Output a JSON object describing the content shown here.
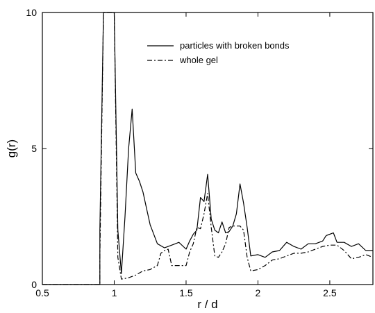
{
  "chart_data": {
    "type": "line",
    "xlabel": "r / d",
    "ylabel": "g(r)",
    "xlim": [
      0.5,
      2.8
    ],
    "ylim": [
      0,
      10
    ],
    "x_ticks": [
      0.5,
      1,
      1.5,
      2,
      2.5
    ],
    "x_tick_labels": [
      "0.5",
      "1",
      "1.5",
      "2",
      "2.5"
    ],
    "y_ticks": [
      0,
      5,
      10
    ],
    "y_tick_labels": [
      "0",
      "5",
      "10"
    ],
    "legend": {
      "position": "top-right"
    },
    "grid": false,
    "series": [
      {
        "name": "particles with broken bonds",
        "style": "solid",
        "color": "#000000",
        "x": [
          0.5,
          0.9,
          0.9,
          0.925,
          0.95,
          0.975,
          1.0,
          1.025,
          1.05,
          1.075,
          1.1,
          1.125,
          1.15,
          1.175,
          1.2,
          1.225,
          1.25,
          1.3,
          1.35,
          1.4,
          1.45,
          1.5,
          1.525,
          1.55,
          1.575,
          1.6,
          1.625,
          1.65,
          1.675,
          1.7,
          1.725,
          1.75,
          1.775,
          1.8,
          1.825,
          1.85,
          1.875,
          1.9,
          1.925,
          1.95,
          2.0,
          2.05,
          2.1,
          2.15,
          2.2,
          2.25,
          2.3,
          2.35,
          2.4,
          2.45,
          2.475,
          2.5,
          2.525,
          2.55,
          2.6,
          2.65,
          2.7,
          2.75,
          2.8
        ],
        "values": [
          0,
          0,
          2.0,
          10,
          10,
          10,
          10,
          2.0,
          0.4,
          2.5,
          5.0,
          6.45,
          4.1,
          3.8,
          3.4,
          2.8,
          2.2,
          1.5,
          1.35,
          1.45,
          1.55,
          1.3,
          1.6,
          1.85,
          2.0,
          3.2,
          3.05,
          4.05,
          2.4,
          2.0,
          1.9,
          2.3,
          1.9,
          1.95,
          2.15,
          2.6,
          3.7,
          3.0,
          2.1,
          1.05,
          1.1,
          1.0,
          1.2,
          1.25,
          1.55,
          1.4,
          1.3,
          1.5,
          1.5,
          1.6,
          1.8,
          1.85,
          1.9,
          1.55,
          1.55,
          1.4,
          1.5,
          1.25,
          1.25
        ]
      },
      {
        "name": "whole gel",
        "style": "dash-dot",
        "color": "#000000",
        "x": [
          0.5,
          0.9,
          0.9,
          0.925,
          0.95,
          0.975,
          1.0,
          1.025,
          1.05,
          1.1,
          1.15,
          1.2,
          1.25,
          1.3,
          1.325,
          1.35,
          1.375,
          1.4,
          1.45,
          1.5,
          1.525,
          1.55,
          1.575,
          1.6,
          1.625,
          1.65,
          1.675,
          1.7,
          1.725,
          1.75,
          1.775,
          1.8,
          1.825,
          1.85,
          1.875,
          1.9,
          1.925,
          1.95,
          2.0,
          2.05,
          2.1,
          2.15,
          2.2,
          2.25,
          2.3,
          2.35,
          2.4,
          2.45,
          2.5,
          2.55,
          2.6,
          2.65,
          2.7,
          2.75,
          2.8
        ],
        "values": [
          0,
          0,
          1.0,
          10,
          10,
          10,
          10,
          1.0,
          0.2,
          0.25,
          0.35,
          0.5,
          0.55,
          0.7,
          1.15,
          1.25,
          1.3,
          0.7,
          0.7,
          0.7,
          1.2,
          1.5,
          2.1,
          2.05,
          2.6,
          3.35,
          2.1,
          1.05,
          1.0,
          1.2,
          1.5,
          2.1,
          2.15,
          2.15,
          2.15,
          2.0,
          1.0,
          0.5,
          0.55,
          0.7,
          0.9,
          0.95,
          1.05,
          1.15,
          1.15,
          1.2,
          1.3,
          1.4,
          1.45,
          1.45,
          1.25,
          0.95,
          1.0,
          1.1,
          1.0
        ]
      }
    ]
  }
}
